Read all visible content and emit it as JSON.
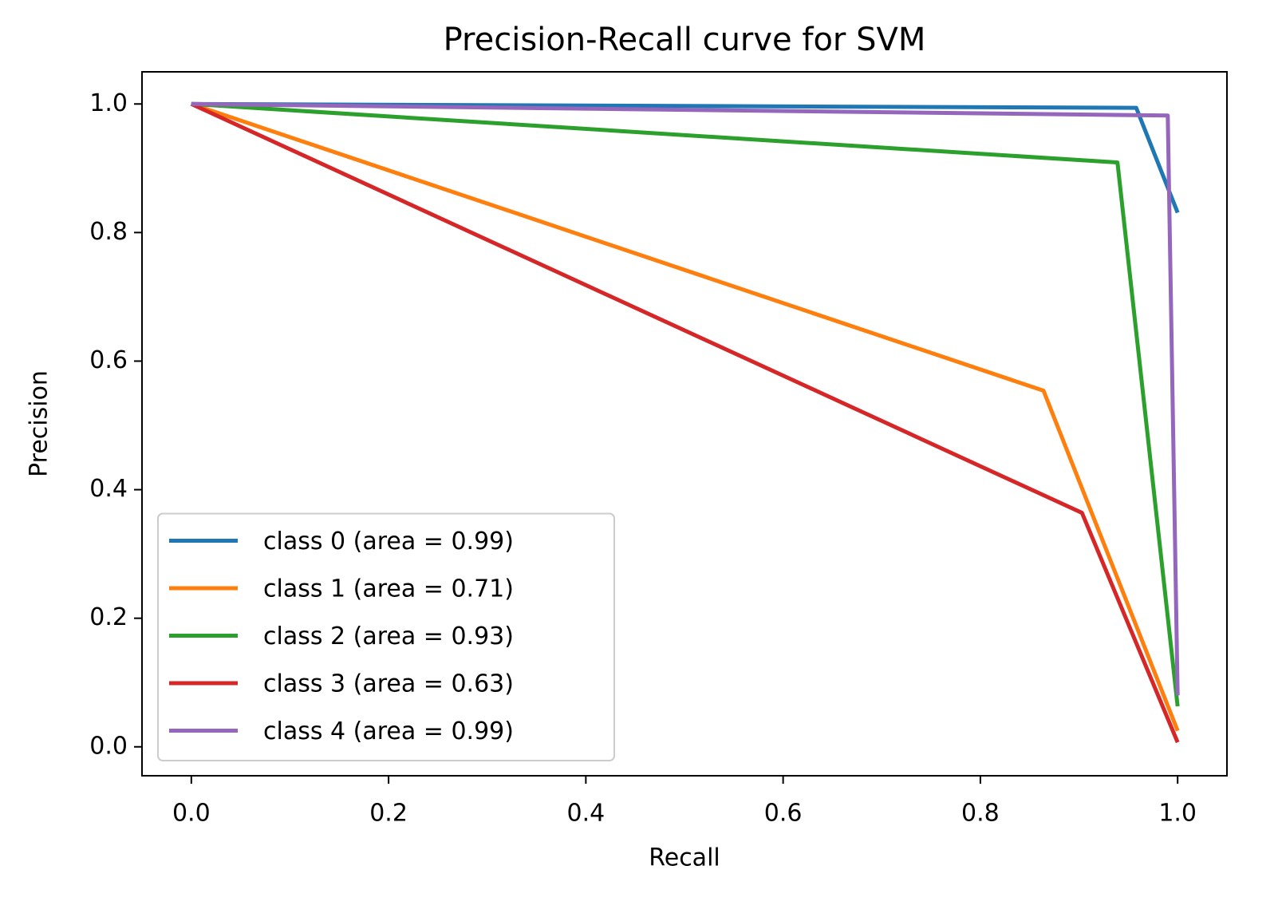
{
  "chart_data": {
    "type": "line",
    "title": "Precision-Recall curve for SVM",
    "x_label": "Recall",
    "y_label": "Precision",
    "series": [
      {
        "name": "class 0 (area = 0.99)",
        "color": "#1f77b4",
        "x": [
          0,
          0.958,
          1
        ],
        "values": [
          1,
          0.994,
          0.831
        ]
      },
      {
        "name": "class 1 (area = 0.71)",
        "color": "#ff7f0e",
        "x": [
          0,
          0.864,
          1
        ],
        "values": [
          1,
          0.554,
          0.025
        ]
      },
      {
        "name": "class 2 (area = 0.93)",
        "color": "#2ca02c",
        "x": [
          0,
          0.939,
          1
        ],
        "values": [
          1,
          0.909,
          0.063
        ]
      },
      {
        "name": "class 3 (area = 0.63)",
        "color": "#d62728",
        "x": [
          0,
          0.903,
          1
        ],
        "values": [
          1,
          0.364,
          0.007
        ]
      },
      {
        "name": "class 4 (area = 0.99)",
        "color": "#9467bd",
        "x": [
          0,
          0.99,
          1
        ],
        "values": [
          1,
          0.982,
          0.08
        ]
      }
    ],
    "xlim": [
      -0.05,
      1.05
    ],
    "ylim": [
      -0.045,
      1.05
    ],
    "xticks": [
      {
        "value": 0,
        "label": "0.0"
      },
      0.2,
      0.4,
      0.6,
      0.8,
      {
        "value": 1,
        "label": "1.0"
      }
    ],
    "yticks": [
      {
        "value": 0,
        "label": "0.0"
      },
      0.2,
      0.4,
      0.6,
      0.8,
      {
        "value": 1,
        "label": "1.0"
      }
    ],
    "grid": false,
    "legend": "lower left"
  }
}
